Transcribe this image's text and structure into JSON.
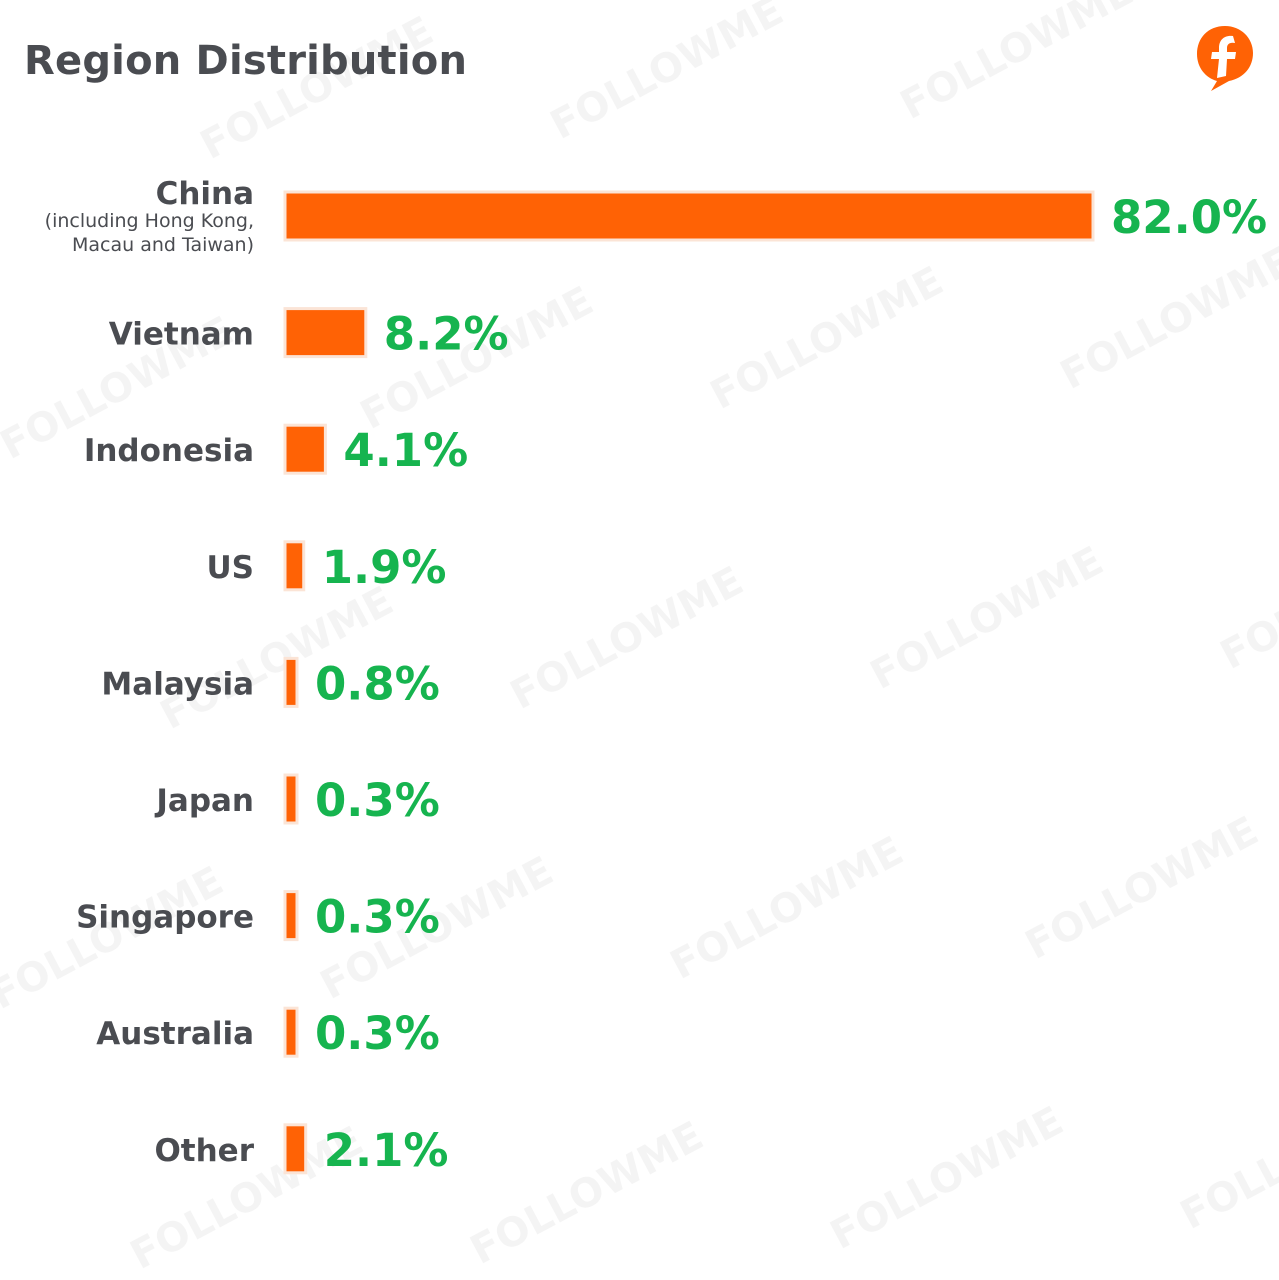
{
  "chart_data": {
    "type": "bar",
    "orientation": "horizontal",
    "title": "Region Distribution",
    "categories": [
      "China",
      "Vietnam",
      "Indonesia",
      "US",
      "Malaysia",
      "Japan",
      "Singapore",
      "Australia",
      "Other"
    ],
    "category_notes": {
      "China": [
        "(including Hong Kong,",
        "Macau and Taiwan)"
      ]
    },
    "values": [
      82.0,
      8.2,
      4.1,
      1.9,
      0.8,
      0.3,
      0.3,
      0.3,
      2.1
    ],
    "value_labels": [
      "82.0%",
      "8.2%",
      "4.1%",
      "1.9%",
      "0.8%",
      "0.3%",
      "0.3%",
      "0.3%",
      "2.1%"
    ],
    "unit": "%",
    "xlim": [
      0,
      82.0
    ],
    "grid": false,
    "legend": "none",
    "bar_color": "#ff6205",
    "value_color": "#16b44f"
  },
  "brand": {
    "logo_icon": "followme-logo-icon",
    "logo_color": "#ff6205",
    "watermark_text": "FOLLOWME"
  }
}
